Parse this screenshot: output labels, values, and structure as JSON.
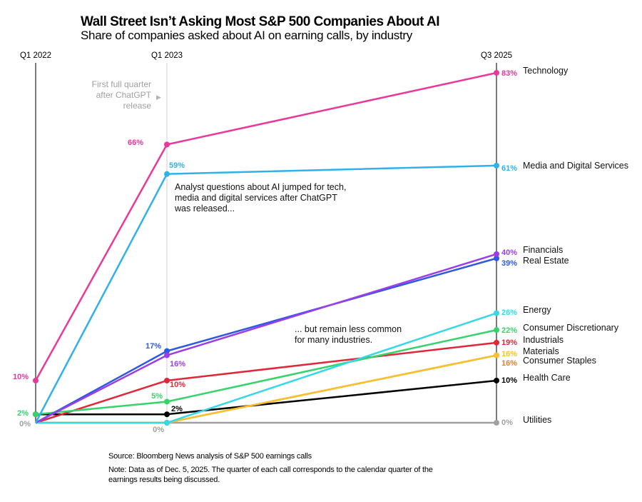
{
  "header": {
    "title": "Wall Street Isn’t Asking Most S&P 500 Companies About AI",
    "subtitle": "Share of companies asked about AI on earning calls, by industry"
  },
  "chart_data": {
    "type": "line",
    "title": "Wall Street Isn’t Asking Most S&P 500 Companies About AI",
    "subtitle": "Share of companies asked about AI on earning calls, by industry",
    "x": [
      "Q1 2022",
      "Q1 2023",
      "Q3 2025"
    ],
    "ylim": [
      0,
      83
    ],
    "unit": "%",
    "grid": false,
    "legend": "direct labels right",
    "series": [
      {
        "name": "Technology",
        "values": [
          10,
          66,
          83
        ],
        "color": "#e8399a",
        "labels": [
          "10%",
          "66%",
          "83%"
        ]
      },
      {
        "name": "Media and Digital Services",
        "values": [
          0,
          59,
          61
        ],
        "color": "#2fb1ea",
        "labels": [
          "",
          "59%",
          "61%"
        ]
      },
      {
        "name": "Financials",
        "values": [
          0,
          16,
          40
        ],
        "color": "#9b3ee8",
        "labels": [
          "",
          "16%",
          "40%"
        ]
      },
      {
        "name": "Real Estate",
        "values": [
          0,
          17,
          39
        ],
        "color": "#2f59e0",
        "labels": [
          "",
          "17%",
          "39%"
        ]
      },
      {
        "name": "Energy",
        "values": [
          0,
          0,
          26
        ],
        "color": "#34d8e8",
        "labels": [
          "",
          "",
          "26%"
        ]
      },
      {
        "name": "Consumer Discretionary",
        "values": [
          2,
          5,
          22
        ],
        "color": "#35d36a",
        "labels": [
          "2%",
          "5%",
          "22%"
        ]
      },
      {
        "name": "Industrials",
        "values": [
          0,
          10,
          19
        ],
        "color": "#e0273a",
        "labels": [
          "",
          "10%",
          "19%"
        ]
      },
      {
        "name": "Materials",
        "values": [
          0,
          0,
          16
        ],
        "color": "#f7c12a",
        "labels": [
          "",
          "",
          "16%"
        ]
      },
      {
        "name": "Consumer Staples",
        "values": [
          0,
          0,
          16
        ],
        "color": "#f07a2a",
        "labels": [
          "",
          "",
          "16%"
        ]
      },
      {
        "name": "Health Care",
        "values": [
          2,
          2,
          10
        ],
        "color": "#000000",
        "labels": [
          "",
          "2%",
          "10%"
        ]
      },
      {
        "name": "Utilities",
        "values": [
          0,
          0,
          0
        ],
        "color": "#a0a0a0",
        "labels": [
          "0%",
          "0%",
          "0%"
        ]
      }
    ],
    "annotations": [
      {
        "text": [
          "First full quarter",
          "after ChatGPT",
          "release"
        ],
        "arrow": "▶",
        "color": "#a0a0a0"
      },
      {
        "text": [
          "Analyst questions about AI jumped for tech,",
          "media and digital services after ChatGPT",
          "was released..."
        ]
      },
      {
        "text": [
          "... but remain less common",
          "for many industries."
        ]
      }
    ]
  },
  "footer": {
    "source": "Source: Bloomberg News analysis of S&P 500 earnings calls",
    "note_line1": "Note: Data as of Dec. 5, 2025. The quarter of each call corresponds to the calendar quarter of the",
    "note_line2": "earnings results being discussed."
  }
}
